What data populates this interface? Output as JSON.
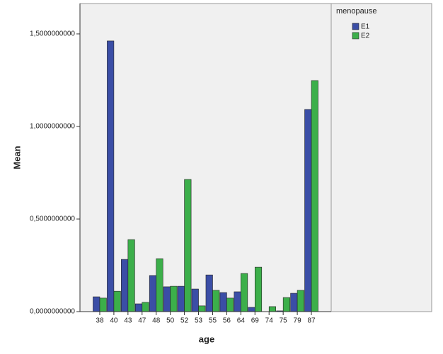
{
  "chart_data": {
    "type": "bar",
    "categories": [
      "38",
      "40",
      "43",
      "47",
      "48",
      "50",
      "52",
      "53",
      "55",
      "56",
      "64",
      "69",
      "74",
      "75",
      "79",
      "87"
    ],
    "series": [
      {
        "name": "E1",
        "color": "#3b4ea6",
        "values": [
          0.08,
          1.462,
          0.282,
          0.042,
          0.195,
          0.134,
          0.137,
          0.122,
          0.198,
          0.103,
          0.107,
          0.023,
          null,
          0.004,
          0.099,
          1.092
        ]
      },
      {
        "name": "E2",
        "color": "#3caf4a",
        "values": [
          0.073,
          0.11,
          0.389,
          0.05,
          0.286,
          0.137,
          0.714,
          0.031,
          0.115,
          0.073,
          0.206,
          0.24,
          0.027,
          0.076,
          0.115,
          1.248
        ]
      }
    ],
    "xlabel": "age",
    "ylabel": "Mean",
    "legend_title": "menopause",
    "ylim": [
      0,
      1.664
    ],
    "yticks": [
      {
        "value": 0,
        "label": "0,0000000000"
      },
      {
        "value": 0.5,
        "label": "0,5000000000"
      },
      {
        "value": 1,
        "label": "1,0000000000"
      },
      {
        "value": 1.5,
        "label": "1,5000000000"
      }
    ]
  }
}
